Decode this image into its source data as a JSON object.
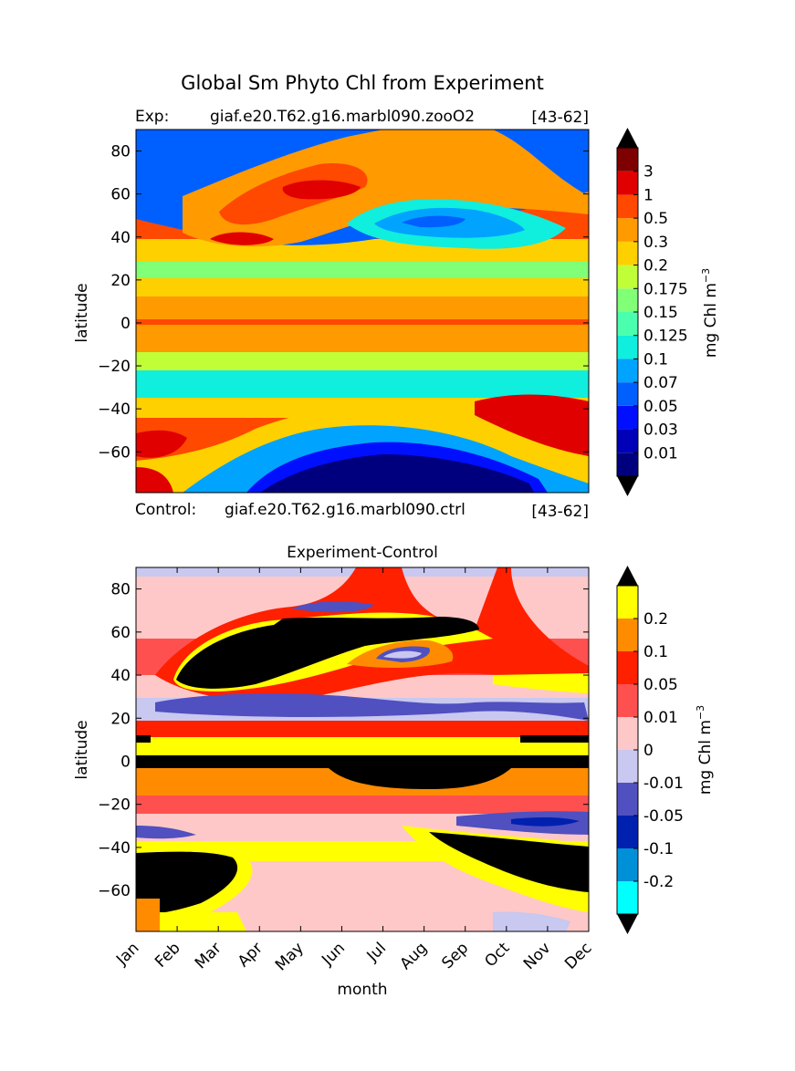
{
  "figure": {
    "title": "Global Sm Phyto Chl from Experiment"
  },
  "chart_data": [
    {
      "type": "heatmap",
      "exp_label": "Exp:",
      "exp_case": "giaf.e20.T62.g16.marbl090.zooO2",
      "exp_years": "[43-62]",
      "ylabel": "latitude",
      "yticks": [
        "80",
        "60",
        "40",
        "20",
        "0",
        "−20",
        "−40",
        "−60"
      ],
      "yticks_values": [
        80,
        60,
        40,
        20,
        0,
        -20,
        -40,
        -60
      ],
      "ylim": [
        -79,
        90
      ],
      "xlim": [
        0,
        11
      ],
      "colorbar": {
        "label": "mg Chl m",
        "label_sup": "−3",
        "ticks": [
          "0.01",
          "0.03",
          "0.05",
          "0.07",
          "0.1",
          "0.125",
          "0.15",
          "0.175",
          "0.2",
          "0.3",
          "0.5",
          "1",
          "3"
        ],
        "colors": [
          "#00007f",
          "#0000b8",
          "#0010ff",
          "#0060ff",
          "#00a4ff",
          "#10eede",
          "#4affad",
          "#80ff77",
          "#c0ff37",
          "#ffd000",
          "#ff9a00",
          "#ff4800",
          "#e00000",
          "#7f0000"
        ],
        "extend": "both"
      }
    },
    {
      "type": "heatmap",
      "title": "Experiment-Control",
      "ctrl_label": "Control:",
      "ctrl_case": "giaf.e20.T62.g16.marbl090.ctrl",
      "ctrl_years": "[43-62]",
      "ylabel": "latitude",
      "xlabel": "month",
      "categories": [
        "Jan",
        "Feb",
        "Mar",
        "Apr",
        "May",
        "Jun",
        "Jul",
        "Aug",
        "Sep",
        "Oct",
        "Nov",
        "Dec"
      ],
      "yticks": [
        "80",
        "60",
        "40",
        "20",
        "0",
        "−20",
        "−40",
        "−60"
      ],
      "yticks_values": [
        80,
        60,
        40,
        20,
        0,
        -20,
        -40,
        -60
      ],
      "ylim": [
        -79,
        90
      ],
      "xlim": [
        0,
        11
      ],
      "colorbar": {
        "label": "mg Chl m",
        "label_sup": "−3",
        "ticks": [
          "-0.2",
          "-0.1",
          "-0.05",
          "-0.01",
          "0",
          "0.01",
          "0.05",
          "0.1",
          "0.2"
        ],
        "colors": [
          "#00ffff",
          "#0090d8",
          "#0020b0",
          "#5050c0",
          "#c8c8f0",
          "#ffc8c8",
          "#ff5050",
          "#ff2000",
          "#ff8c00",
          "#ffff00"
        ],
        "extend": "both"
      }
    }
  ]
}
